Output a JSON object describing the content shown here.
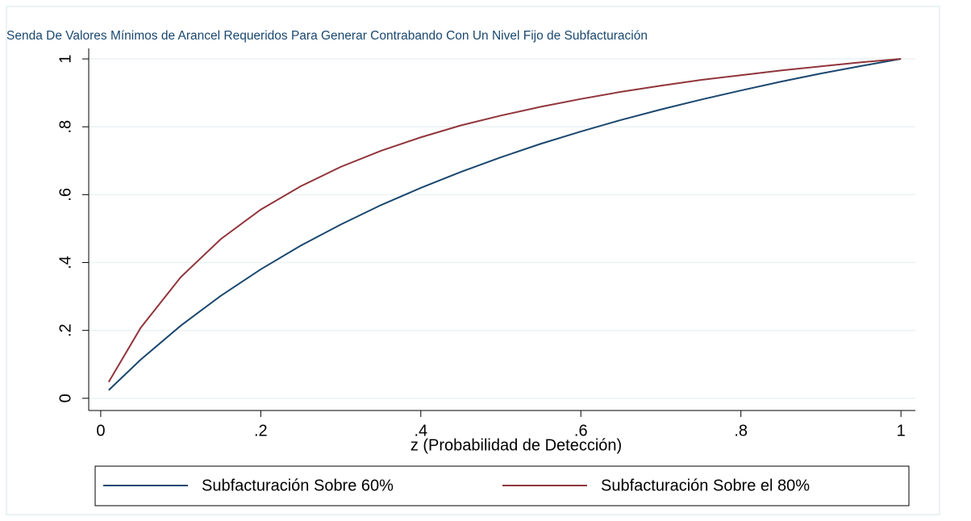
{
  "chart_data": {
    "type": "line",
    "title": "Senda De Valores Mínimos de Arancel Requeridos Para Generar Contrabando Con Un Nivel Fijo de Subfacturación",
    "xlabel": "z (Probabilidad de Detección)",
    "x": [
      0.01,
      0.05,
      0.1,
      0.15,
      0.2,
      0.25,
      0.3,
      0.35,
      0.4,
      0.45,
      0.5,
      0.55,
      0.6,
      0.65,
      0.7,
      0.75,
      0.8,
      0.85,
      0.9,
      0.95,
      1
    ],
    "series": [
      {
        "name": "Subfacturación Sobre 60%",
        "color": "#1a476f",
        "values": [
          0.024,
          0.114,
          0.214,
          0.302,
          0.38,
          0.45,
          0.512,
          0.569,
          0.62,
          0.667,
          0.71,
          0.75,
          0.786,
          0.82,
          0.851,
          0.88,
          0.907,
          0.933,
          0.957,
          0.979,
          1
        ]
      },
      {
        "name": "Subfacturación Sobre el 80%",
        "color": "#90353b",
        "values": [
          0.048,
          0.208,
          0.357,
          0.469,
          0.556,
          0.625,
          0.682,
          0.729,
          0.769,
          0.804,
          0.833,
          0.859,
          0.882,
          0.903,
          0.921,
          0.938,
          0.952,
          0.966,
          0.978,
          0.99,
          1
        ]
      }
    ],
    "xlim": [
      -0.015,
      1.018
    ],
    "ylim": [
      -0.036,
      1.031
    ],
    "xticks": [
      0,
      {
        "value": 0.2,
        "label": ".2"
      },
      {
        "value": 0.4,
        "label": ".4"
      },
      {
        "value": 0.6,
        "label": ".6"
      },
      {
        "value": 0.8,
        "label": ".8"
      },
      1
    ],
    "yticks": [
      0,
      {
        "value": 0.2,
        "label": ".2"
      },
      {
        "value": 0.4,
        "label": ".4"
      },
      {
        "value": 0.6,
        "label": ".6"
      },
      {
        "value": 0.8,
        "label": ".8"
      },
      1
    ],
    "grid": true,
    "legend": "bottom"
  }
}
